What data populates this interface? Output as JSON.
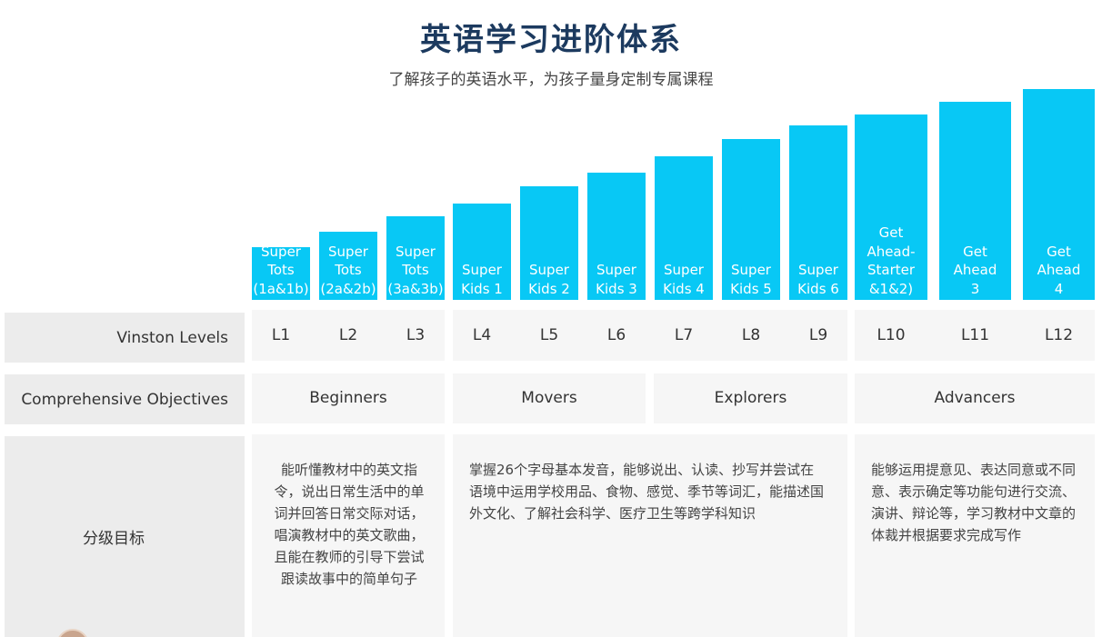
{
  "header": {
    "title": "英语学习进阶体系",
    "subtitle": "了解孩子的英语水平，为孩子量身定制专属课程"
  },
  "courses": [
    {
      "name": "Super\nTots\n(1a&1b)",
      "level": "L1"
    },
    {
      "name": "Super\nTots\n(2a&2b)",
      "level": "L2"
    },
    {
      "name": "Super\nTots\n(3a&3b)",
      "level": "L3"
    },
    {
      "name": "Super\nKids 1",
      "level": "L4"
    },
    {
      "name": "Super\nKids 2",
      "level": "L5"
    },
    {
      "name": "Super\nKids 3",
      "level": "L6"
    },
    {
      "name": "Super\nKids 4",
      "level": "L7"
    },
    {
      "name": "Super\nKids 5",
      "level": "L8"
    },
    {
      "name": "Super\nKids 6",
      "level": "L9"
    },
    {
      "name": "Get\nAhead-\nStarter\n&1&2)",
      "level": "L10"
    },
    {
      "name": "Get\nAhead\n3",
      "level": "L11"
    },
    {
      "name": "Get\nAhead\n4",
      "level": "L12"
    }
  ],
  "rows": {
    "levels_label": "Vinston Levels",
    "objectives_label": "Comprehensive Objectives",
    "goals_label": "分级目标"
  },
  "objectives": [
    "Beginners",
    "Movers",
    "Explorers",
    "Advancers"
  ],
  "goals": {
    "beginners": "能听懂教材中的英文指令，说出日常生活中的单词并回答日常交际对话，唱演教材中的英文歌曲，且能在教师的引导下尝试跟读故事中的简单句子",
    "middle": "掌握26个字母基本发音，能够说出、认读、抄写并尝试在语境中运用学校用品、食物、感觉、季节等词汇，能描述国外文化、了解社会科学、医疗卫生等跨学科知识",
    "advancers": "能够运用提意见、表达同意或不同意、表示确定等功能句进行交流、演讲、辩论等，学习教材中文章的体裁并根据要求完成写作"
  },
  "colors": {
    "bar": "#08c8f5",
    "title": "#1c3a5f",
    "label_bg": "#ececec",
    "cell_bg": "#f6f6f6"
  }
}
